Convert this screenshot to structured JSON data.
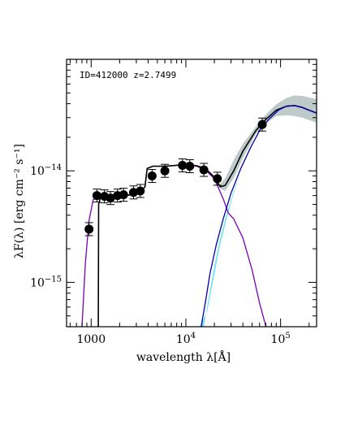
{
  "chart_data": {
    "type": "scatter",
    "annotation": "ID=412000 z=2.7499",
    "xlabel": "wavelength λ[Å]",
    "ylabel": "λF(λ) [erg cm⁻² s⁻¹]",
    "x_scale": "log",
    "y_scale": "log",
    "xlim": [
      550,
      240000
    ],
    "ylim": [
      4e-16,
      1e-13
    ],
    "x_ticks": [
      {
        "value": 1000,
        "label": "1000"
      },
      {
        "value": 10000,
        "label": "10",
        "exp": "4"
      },
      {
        "value": 100000,
        "label": "10",
        "exp": "5"
      }
    ],
    "y_ticks": [
      {
        "value": 1e-15,
        "label": "10",
        "exp": "−15"
      },
      {
        "value": 1e-14,
        "label": "10",
        "exp": "−14"
      }
    ],
    "photometry": [
      {
        "x": 950,
        "y": 3e-15
      },
      {
        "x": 1150,
        "y": 6e-15
      },
      {
        "x": 1380,
        "y": 5.9e-15
      },
      {
        "x": 1600,
        "y": 5.7e-15
      },
      {
        "x": 1900,
        "y": 6e-15
      },
      {
        "x": 2200,
        "y": 6.1e-15
      },
      {
        "x": 2800,
        "y": 6.4e-15
      },
      {
        "x": 3300,
        "y": 6.6e-15
      },
      {
        "x": 4400,
        "y": 9e-15
      },
      {
        "x": 6000,
        "y": 1e-14
      },
      {
        "x": 9200,
        "y": 1.12e-14
      },
      {
        "x": 11000,
        "y": 1.1e-14
      },
      {
        "x": 15500,
        "y": 1.02e-14
      },
      {
        "x": 21500,
        "y": 8.5e-15
      },
      {
        "x": 64000,
        "y": 2.6e-14
      }
    ],
    "series": [
      {
        "role": "stellar-model",
        "color": "#7a00b0",
        "points": [
          [
            800,
            4e-16
          ],
          [
            870,
            1.5e-15
          ],
          [
            950,
            3.6e-15
          ],
          [
            1050,
            5.5e-15
          ],
          [
            1200,
            5.9e-15
          ],
          [
            1500,
            5.8e-15
          ],
          [
            2000,
            5.9e-15
          ],
          [
            2600,
            6.1e-15
          ],
          [
            3300,
            6.4e-15
          ],
          [
            3700,
            7.2e-15
          ],
          [
            3900,
            1.05e-14
          ],
          [
            4500,
            1.1e-14
          ],
          [
            6000,
            1.1e-14
          ],
          [
            8000,
            1.12e-14
          ],
          [
            10000,
            1.14e-14
          ],
          [
            13000,
            1.1e-14
          ],
          [
            16000,
            1.02e-14
          ],
          [
            20000,
            8.5e-15
          ],
          [
            25000,
            5.5e-15
          ],
          [
            28000,
            4.2e-15
          ],
          [
            32000,
            3.7e-15
          ],
          [
            40000,
            2.5e-15
          ],
          [
            50000,
            1.3e-15
          ],
          [
            60000,
            6.5e-16
          ],
          [
            70000,
            4e-16
          ]
        ]
      },
      {
        "role": "total-model",
        "color": "#000000",
        "points": [
          [
            1190,
            4e-16
          ],
          [
            1200,
            5e-15
          ],
          [
            1260,
            5.9e-15
          ],
          [
            1500,
            5.8e-15
          ],
          [
            2000,
            5.9e-15
          ],
          [
            2600,
            6.1e-15
          ],
          [
            3300,
            6.4e-15
          ],
          [
            3700,
            7.2e-15
          ],
          [
            3900,
            1.05e-14
          ],
          [
            4500,
            1.1e-14
          ],
          [
            6000,
            1.1e-14
          ],
          [
            8000,
            1.12e-14
          ],
          [
            10000,
            1.14e-14
          ],
          [
            13000,
            1.11e-14
          ],
          [
            16000,
            1.05e-14
          ],
          [
            20000,
            8.8e-15
          ],
          [
            23000,
            7.2e-15
          ],
          [
            26000,
            7.4e-15
          ],
          [
            32000,
            1e-14
          ],
          [
            40000,
            1.5e-14
          ],
          [
            55000,
            2.3e-14
          ],
          [
            70000,
            2.9e-14
          ],
          [
            90000,
            3.5e-14
          ],
          [
            115000,
            3.8e-14
          ],
          [
            140000,
            3.85e-14
          ],
          [
            170000,
            3.7e-14
          ],
          [
            200000,
            3.5e-14
          ],
          [
            240000,
            3.3e-14
          ]
        ]
      },
      {
        "role": "dust-model",
        "color": "#0000b0",
        "points": [
          [
            14500,
            4e-16
          ],
          [
            16000,
            6.5e-16
          ],
          [
            18000,
            1.2e-15
          ],
          [
            21000,
            2.2e-15
          ],
          [
            25000,
            3.8e-15
          ],
          [
            30000,
            6.3e-15
          ],
          [
            38000,
            1.05e-14
          ],
          [
            48000,
            1.6e-14
          ],
          [
            60000,
            2.3e-14
          ],
          [
            75000,
            2.9e-14
          ],
          [
            95000,
            3.5e-14
          ],
          [
            115000,
            3.8e-14
          ],
          [
            140000,
            3.85e-14
          ],
          [
            170000,
            3.7e-14
          ],
          [
            200000,
            3.5e-14
          ],
          [
            240000,
            3.3e-14
          ]
        ]
      }
    ],
    "dust_band": {
      "color": "#66e0f0",
      "upper": [
        [
          15500,
          4e-16
        ],
        [
          17000,
          6.5e-16
        ],
        [
          19500,
          1.25e-15
        ],
        [
          22500,
          2.3e-15
        ],
        [
          26500,
          3.9e-15
        ],
        [
          31500,
          6.3e-15
        ],
        [
          38000,
          9.8e-15
        ]
      ],
      "lower": [
        [
          38000,
          9.8e-15
        ],
        [
          31500,
          6e-15
        ],
        [
          26500,
          3.5e-15
        ],
        [
          22500,
          2e-15
        ],
        [
          19500,
          1.05e-15
        ],
        [
          16800,
          5.5e-16
        ],
        [
          14000,
          4e-16
        ]
      ]
    },
    "total_band": {
      "color": "#a8b8b8",
      "upper": [
        [
          23000,
          7.6e-15
        ],
        [
          26000,
          8.6e-15
        ],
        [
          32000,
          1.25e-14
        ],
        [
          40000,
          1.75e-14
        ],
        [
          55000,
          2.5e-14
        ],
        [
          70000,
          3.2e-14
        ],
        [
          90000,
          3.95e-14
        ],
        [
          115000,
          4.5e-14
        ],
        [
          140000,
          4.75e-14
        ],
        [
          170000,
          4.7e-14
        ],
        [
          200000,
          4.55e-14
        ],
        [
          240000,
          4.4e-14
        ]
      ],
      "lower": [
        [
          240000,
          2.7e-14
        ],
        [
          200000,
          2.85e-14
        ],
        [
          170000,
          3e-14
        ],
        [
          140000,
          3.1e-14
        ],
        [
          115000,
          3.15e-14
        ],
        [
          90000,
          3.1e-14
        ],
        [
          70000,
          2.65e-14
        ],
        [
          55000,
          2.15e-14
        ],
        [
          40000,
          1.3e-14
        ],
        [
          32000,
          8.6e-15
        ],
        [
          26000,
          6.6e-15
        ],
        [
          23000,
          6.9e-15
        ]
      ]
    }
  }
}
